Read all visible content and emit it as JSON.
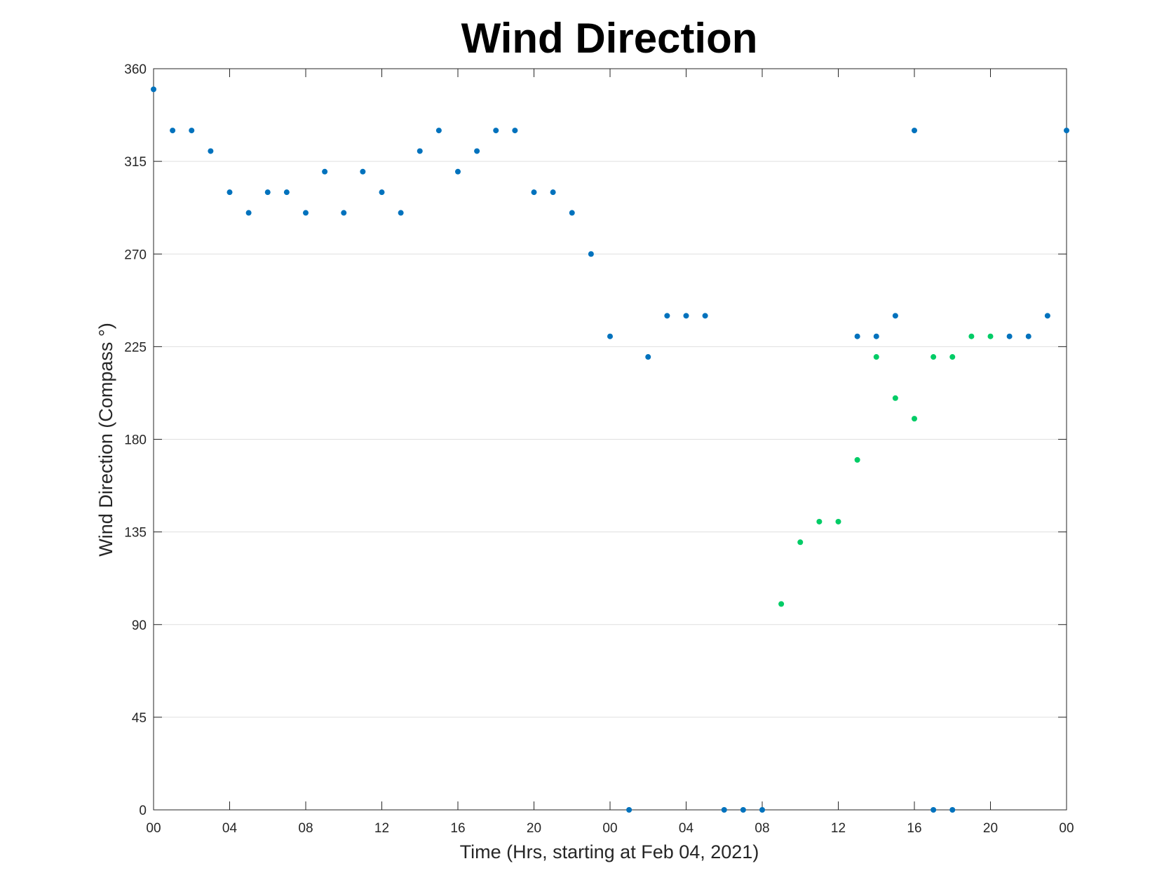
{
  "chart_data": {
    "type": "scatter",
    "title": "Wind Direction",
    "xlabel": "Time (Hrs, starting at Feb 04, 2021)",
    "ylabel": "Wind Direction (Compass °)",
    "x_unit": "hours",
    "xlim": [
      0,
      48
    ],
    "ylim": [
      0,
      360
    ],
    "yticks": [
      0,
      45,
      90,
      135,
      180,
      225,
      270,
      315,
      360
    ],
    "xtick_values": [
      0,
      4,
      8,
      12,
      16,
      20,
      24,
      28,
      32,
      36,
      40,
      44,
      48
    ],
    "xtick_labels": [
      "00",
      "04",
      "08",
      "12",
      "16",
      "20",
      "00",
      "04",
      "08",
      "12",
      "16",
      "20",
      "00"
    ],
    "grid": true,
    "colors": {
      "blue": "#0072BD",
      "green": "#00CC66"
    },
    "series": [
      {
        "color": "#0072BD",
        "x": [
          0,
          1,
          2,
          3,
          4,
          5,
          6,
          7,
          8,
          9,
          10,
          11,
          12,
          13,
          14,
          15,
          16,
          17,
          18,
          19,
          20,
          21,
          22,
          23,
          24,
          25,
          26,
          27,
          28,
          29,
          30,
          31,
          32,
          37,
          38,
          39,
          40,
          41,
          42,
          45,
          46,
          47,
          48
        ],
        "values": [
          350,
          330,
          330,
          320,
          300,
          290,
          300,
          300,
          290,
          310,
          290,
          310,
          300,
          290,
          320,
          330,
          310,
          320,
          330,
          330,
          300,
          300,
          290,
          270,
          230,
          0,
          220,
          240,
          240,
          240,
          0,
          0,
          0,
          230,
          230,
          240,
          330,
          0,
          0,
          230,
          230,
          240,
          330
        ]
      },
      {
        "color": "#00CC66",
        "x": [
          33,
          34,
          35,
          36,
          37,
          38,
          39,
          40,
          41,
          42,
          43,
          44
        ],
        "values": [
          100,
          130,
          140,
          140,
          170,
          220,
          200,
          190,
          220,
          220,
          230,
          230
        ]
      }
    ]
  }
}
